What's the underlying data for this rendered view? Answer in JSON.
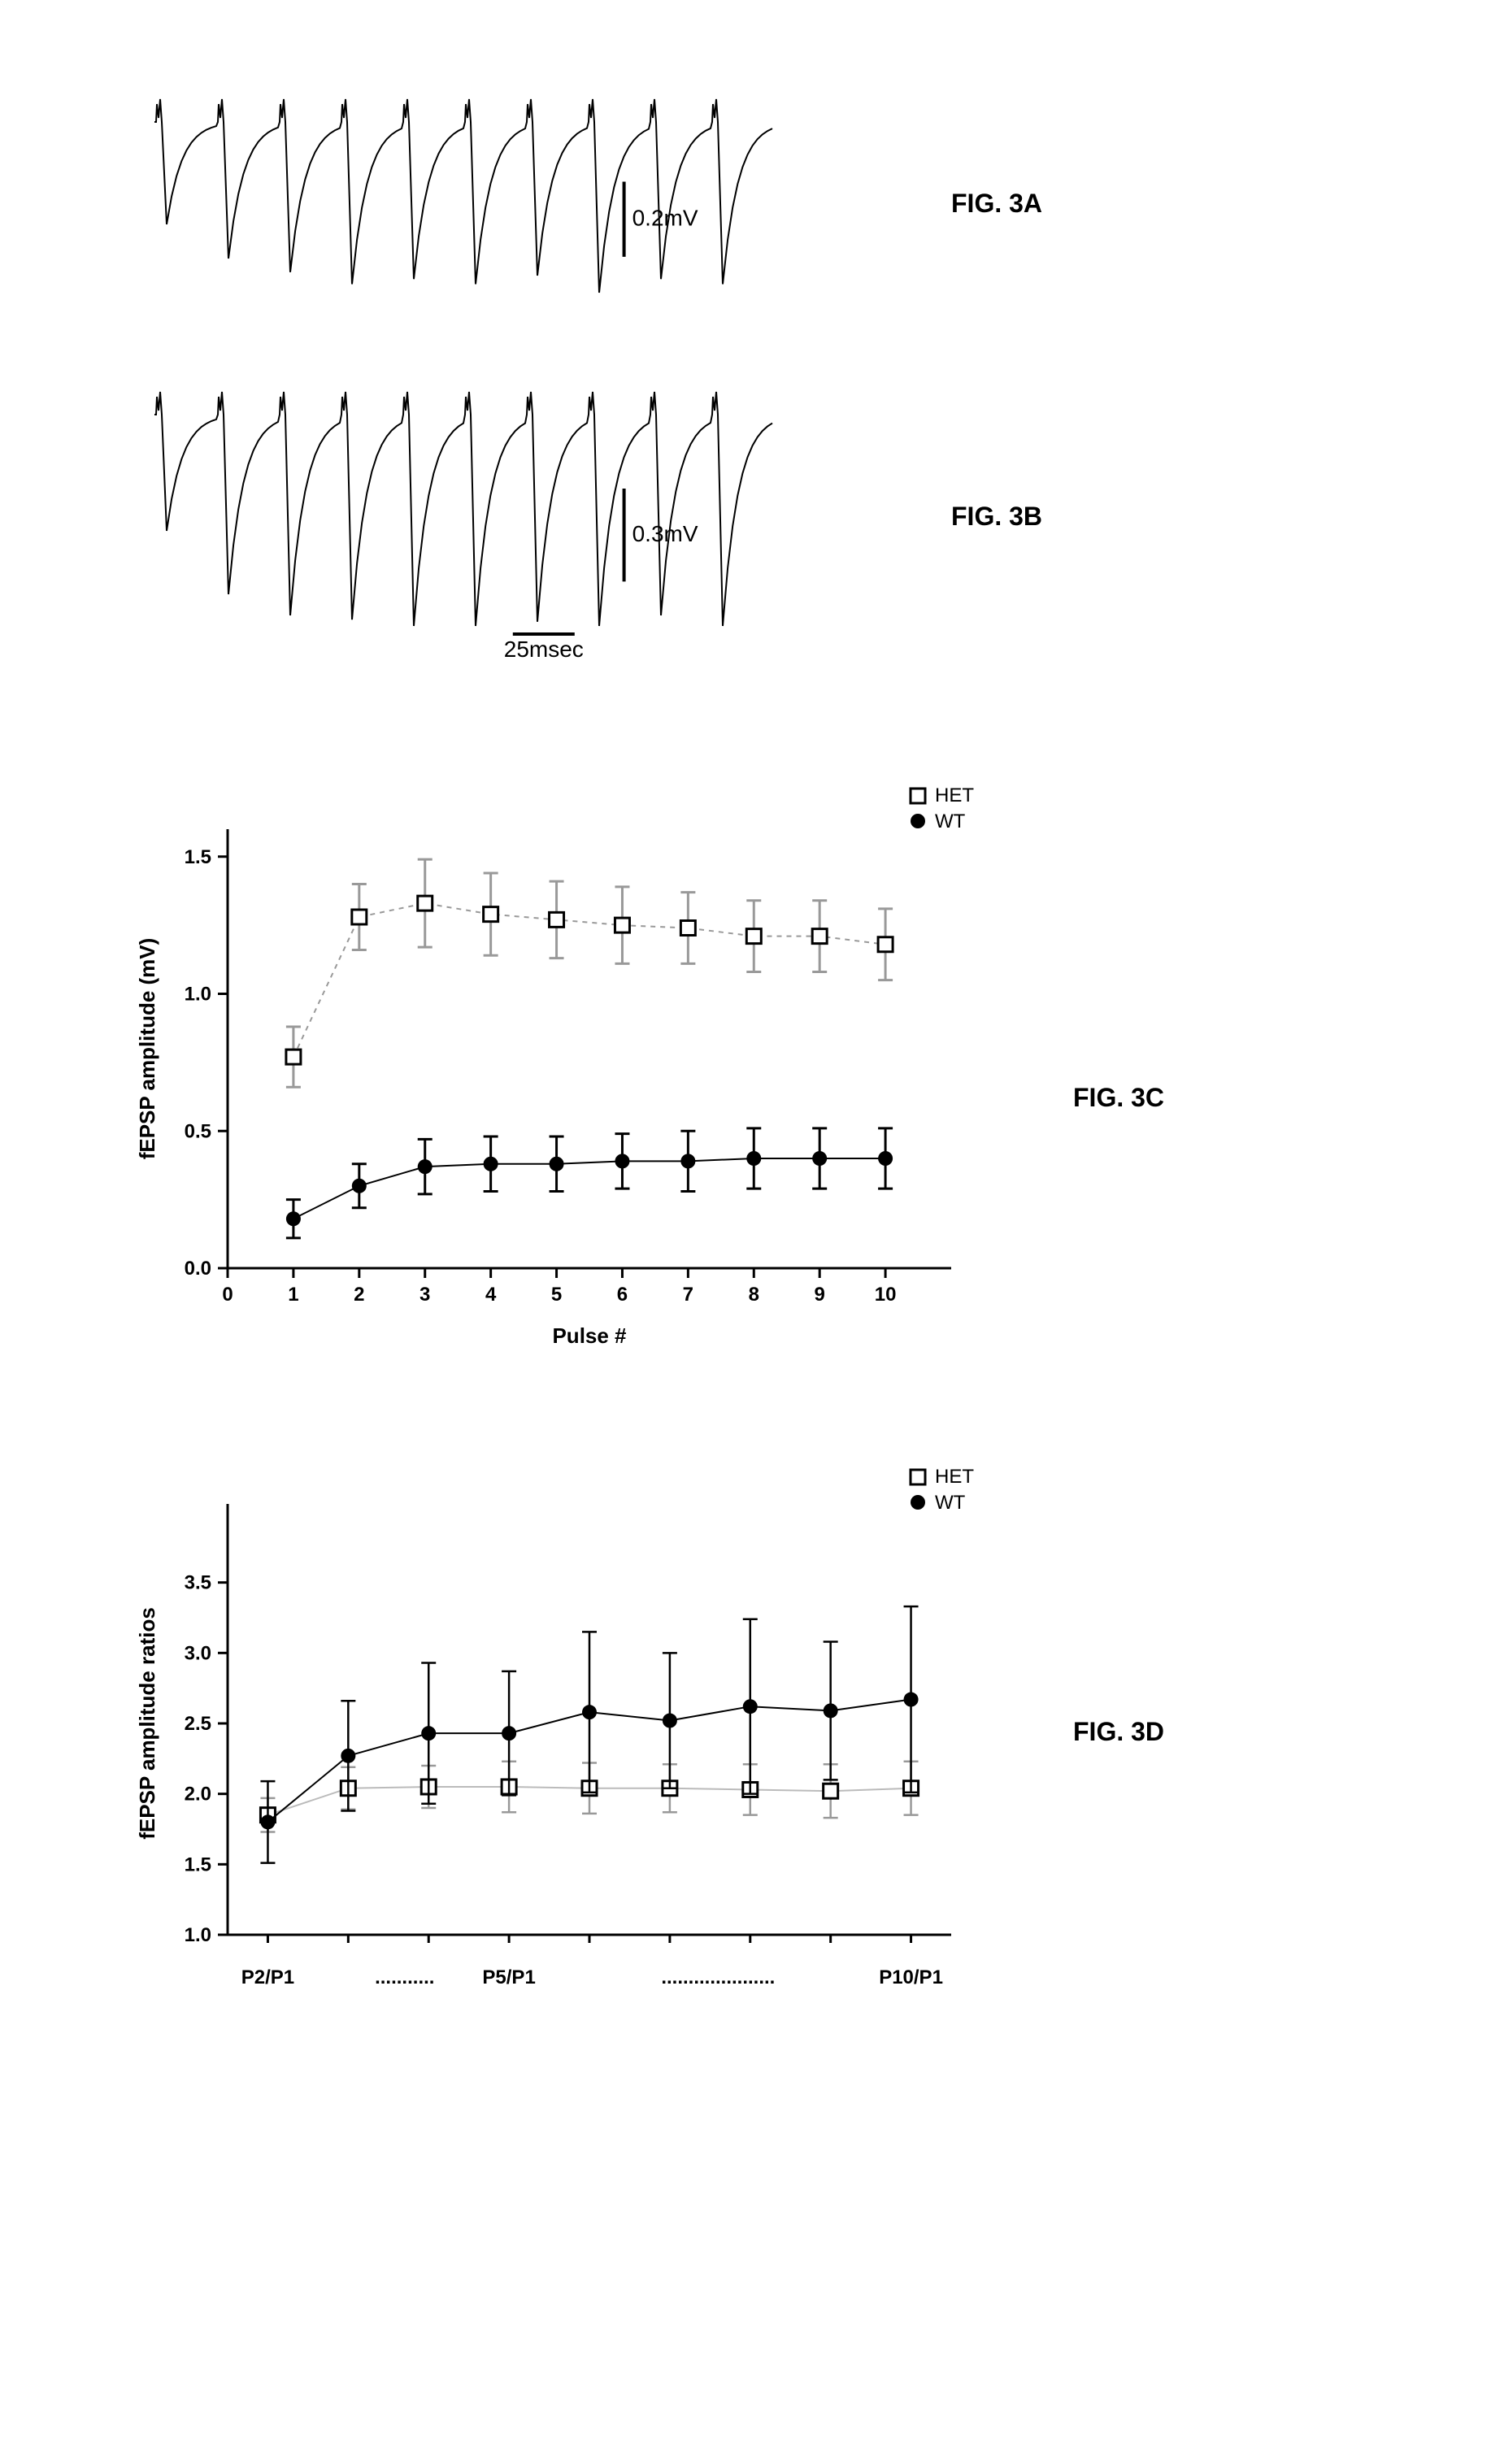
{
  "fig3a": {
    "label": "FIG. 3A",
    "scale_y_label": "0.2mV",
    "n_pulses": 10,
    "amplitudes_rel": [
      0.6,
      0.8,
      0.88,
      0.95,
      0.92,
      0.95,
      0.9,
      1.0,
      0.92,
      0.95
    ],
    "trace_color": "#000000",
    "bg_color": "#ffffff",
    "line_width": 2
  },
  "fig3b": {
    "label": "FIG. 3B",
    "scale_y_label": "0.3mV",
    "scale_x_label": "25msec",
    "n_pulses": 10,
    "amplitudes_rel": [
      0.55,
      0.85,
      0.95,
      0.97,
      1.0,
      1.0,
      0.98,
      1.0,
      0.95,
      1.0
    ],
    "trace_color": "#000000",
    "bg_color": "#ffffff",
    "line_width": 2
  },
  "fig3c": {
    "label": "FIG. 3C",
    "chart_type": "scatter_errorbar",
    "xlabel": "Pulse #",
    "ylabel": "fEPSP amplitude (mV)",
    "xlim": [
      0,
      11
    ],
    "ylim": [
      0,
      1.6
    ],
    "yticks": [
      0.0,
      0.5,
      1.0,
      1.5
    ],
    "ytick_labels": [
      "0.0",
      "0.5",
      "1.0",
      "1.5"
    ],
    "xticks": [
      0,
      1,
      2,
      3,
      4,
      5,
      6,
      7,
      8,
      9,
      10
    ],
    "xtick_labels": [
      "0",
      "1",
      "2",
      "3",
      "4",
      "5",
      "6",
      "7",
      "8",
      "9",
      "10"
    ],
    "series": {
      "het": {
        "label": "HET",
        "marker": "open_square",
        "color": "#999999",
        "marker_border": "#000000",
        "line_style": "dashed",
        "x": [
          1,
          2,
          3,
          4,
          5,
          6,
          7,
          8,
          9,
          10
        ],
        "y": [
          0.77,
          1.28,
          1.33,
          1.29,
          1.27,
          1.25,
          1.24,
          1.21,
          1.21,
          1.18
        ],
        "err": [
          0.11,
          0.12,
          0.16,
          0.15,
          0.14,
          0.14,
          0.13,
          0.13,
          0.13,
          0.13
        ]
      },
      "wt": {
        "label": "WT",
        "marker": "filled_circle",
        "color": "#000000",
        "line_style": "solid",
        "x": [
          1,
          2,
          3,
          4,
          5,
          6,
          7,
          8,
          9,
          10
        ],
        "y": [
          0.18,
          0.3,
          0.37,
          0.38,
          0.38,
          0.39,
          0.39,
          0.4,
          0.4,
          0.4
        ],
        "err": [
          0.07,
          0.08,
          0.1,
          0.1,
          0.1,
          0.1,
          0.11,
          0.11,
          0.11,
          0.11
        ]
      }
    },
    "axis_color": "#000000",
    "label_fontsize": 26,
    "tick_fontsize": 24,
    "axis_linewidth": 3
  },
  "fig3d": {
    "label": "FIG. 3D",
    "chart_type": "scatter_errorbar",
    "xlabel_parts": [
      "P2/P1",
      "...........",
      "P5/P1",
      ".....................",
      "P10/P1"
    ],
    "ylabel": "fEPSP amplitude ratios",
    "xlim": [
      0.5,
      9.5
    ],
    "ylim": [
      1.0,
      4.0
    ],
    "yticks": [
      1.0,
      1.5,
      2.0,
      2.5,
      3.0,
      3.5
    ],
    "ytick_labels": [
      "1.0",
      "1.5",
      "2.0",
      "2.5",
      "3.0",
      "3.5"
    ],
    "xticks": [
      1,
      2,
      3,
      4,
      5,
      6,
      7,
      8,
      9
    ],
    "series": {
      "het": {
        "label": "HET",
        "marker": "open_square",
        "color": "#999999",
        "marker_border": "#000000",
        "line_style": "solid_gray",
        "x": [
          1,
          2,
          3,
          4,
          5,
          6,
          7,
          8,
          9
        ],
        "y": [
          1.85,
          2.04,
          2.05,
          2.05,
          2.04,
          2.04,
          2.03,
          2.02,
          2.04
        ],
        "err": [
          0.12,
          0.15,
          0.15,
          0.18,
          0.18,
          0.17,
          0.18,
          0.19,
          0.19
        ]
      },
      "wt": {
        "label": "WT",
        "marker": "filled_circle",
        "color": "#000000",
        "line_style": "solid",
        "x": [
          1,
          2,
          3,
          4,
          5,
          6,
          7,
          8,
          9
        ],
        "y": [
          1.8,
          2.27,
          2.43,
          2.43,
          2.58,
          2.52,
          2.62,
          2.59,
          2.67
        ],
        "err": [
          0.29,
          0.39,
          0.5,
          0.44,
          0.57,
          0.48,
          0.62,
          0.49,
          0.66
        ]
      }
    },
    "axis_color": "#000000",
    "label_fontsize": 26,
    "tick_fontsize": 24,
    "axis_linewidth": 3
  }
}
